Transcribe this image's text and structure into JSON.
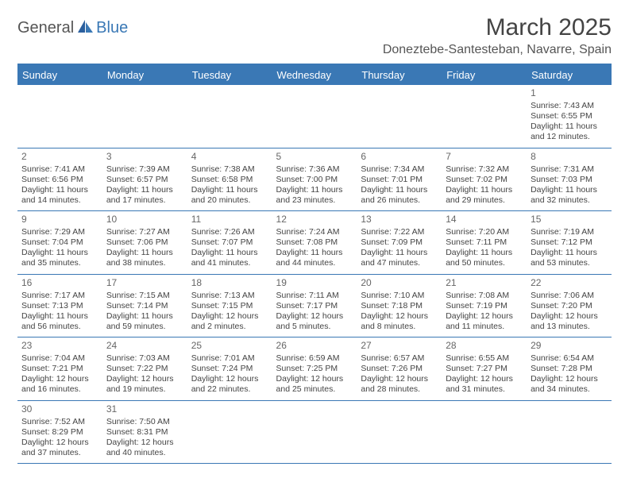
{
  "logo": {
    "part1": "General",
    "part2": "Blue"
  },
  "title": "March 2025",
  "location": "Doneztebe-Santesteban, Navarre, Spain",
  "colors": {
    "header_bg": "#3a78b5",
    "header_text": "#ffffff",
    "border": "#3a78b5",
    "text": "#444444",
    "daynum": "#666666"
  },
  "fonts": {
    "title_size": 30,
    "location_size": 16,
    "header_size": 13,
    "cell_size": 10.5,
    "daynum_size": 12
  },
  "weekdays": [
    "Sunday",
    "Monday",
    "Tuesday",
    "Wednesday",
    "Thursday",
    "Friday",
    "Saturday"
  ],
  "weeks": [
    [
      null,
      null,
      null,
      null,
      null,
      null,
      {
        "n": "1",
        "sr": "Sunrise: 7:43 AM",
        "ss": "Sunset: 6:55 PM",
        "dl1": "Daylight: 11 hours",
        "dl2": "and 12 minutes."
      }
    ],
    [
      {
        "n": "2",
        "sr": "Sunrise: 7:41 AM",
        "ss": "Sunset: 6:56 PM",
        "dl1": "Daylight: 11 hours",
        "dl2": "and 14 minutes."
      },
      {
        "n": "3",
        "sr": "Sunrise: 7:39 AM",
        "ss": "Sunset: 6:57 PM",
        "dl1": "Daylight: 11 hours",
        "dl2": "and 17 minutes."
      },
      {
        "n": "4",
        "sr": "Sunrise: 7:38 AM",
        "ss": "Sunset: 6:58 PM",
        "dl1": "Daylight: 11 hours",
        "dl2": "and 20 minutes."
      },
      {
        "n": "5",
        "sr": "Sunrise: 7:36 AM",
        "ss": "Sunset: 7:00 PM",
        "dl1": "Daylight: 11 hours",
        "dl2": "and 23 minutes."
      },
      {
        "n": "6",
        "sr": "Sunrise: 7:34 AM",
        "ss": "Sunset: 7:01 PM",
        "dl1": "Daylight: 11 hours",
        "dl2": "and 26 minutes."
      },
      {
        "n": "7",
        "sr": "Sunrise: 7:32 AM",
        "ss": "Sunset: 7:02 PM",
        "dl1": "Daylight: 11 hours",
        "dl2": "and 29 minutes."
      },
      {
        "n": "8",
        "sr": "Sunrise: 7:31 AM",
        "ss": "Sunset: 7:03 PM",
        "dl1": "Daylight: 11 hours",
        "dl2": "and 32 minutes."
      }
    ],
    [
      {
        "n": "9",
        "sr": "Sunrise: 7:29 AM",
        "ss": "Sunset: 7:04 PM",
        "dl1": "Daylight: 11 hours",
        "dl2": "and 35 minutes."
      },
      {
        "n": "10",
        "sr": "Sunrise: 7:27 AM",
        "ss": "Sunset: 7:06 PM",
        "dl1": "Daylight: 11 hours",
        "dl2": "and 38 minutes."
      },
      {
        "n": "11",
        "sr": "Sunrise: 7:26 AM",
        "ss": "Sunset: 7:07 PM",
        "dl1": "Daylight: 11 hours",
        "dl2": "and 41 minutes."
      },
      {
        "n": "12",
        "sr": "Sunrise: 7:24 AM",
        "ss": "Sunset: 7:08 PM",
        "dl1": "Daylight: 11 hours",
        "dl2": "and 44 minutes."
      },
      {
        "n": "13",
        "sr": "Sunrise: 7:22 AM",
        "ss": "Sunset: 7:09 PM",
        "dl1": "Daylight: 11 hours",
        "dl2": "and 47 minutes."
      },
      {
        "n": "14",
        "sr": "Sunrise: 7:20 AM",
        "ss": "Sunset: 7:11 PM",
        "dl1": "Daylight: 11 hours",
        "dl2": "and 50 minutes."
      },
      {
        "n": "15",
        "sr": "Sunrise: 7:19 AM",
        "ss": "Sunset: 7:12 PM",
        "dl1": "Daylight: 11 hours",
        "dl2": "and 53 minutes."
      }
    ],
    [
      {
        "n": "16",
        "sr": "Sunrise: 7:17 AM",
        "ss": "Sunset: 7:13 PM",
        "dl1": "Daylight: 11 hours",
        "dl2": "and 56 minutes."
      },
      {
        "n": "17",
        "sr": "Sunrise: 7:15 AM",
        "ss": "Sunset: 7:14 PM",
        "dl1": "Daylight: 11 hours",
        "dl2": "and 59 minutes."
      },
      {
        "n": "18",
        "sr": "Sunrise: 7:13 AM",
        "ss": "Sunset: 7:15 PM",
        "dl1": "Daylight: 12 hours",
        "dl2": "and 2 minutes."
      },
      {
        "n": "19",
        "sr": "Sunrise: 7:11 AM",
        "ss": "Sunset: 7:17 PM",
        "dl1": "Daylight: 12 hours",
        "dl2": "and 5 minutes."
      },
      {
        "n": "20",
        "sr": "Sunrise: 7:10 AM",
        "ss": "Sunset: 7:18 PM",
        "dl1": "Daylight: 12 hours",
        "dl2": "and 8 minutes."
      },
      {
        "n": "21",
        "sr": "Sunrise: 7:08 AM",
        "ss": "Sunset: 7:19 PM",
        "dl1": "Daylight: 12 hours",
        "dl2": "and 11 minutes."
      },
      {
        "n": "22",
        "sr": "Sunrise: 7:06 AM",
        "ss": "Sunset: 7:20 PM",
        "dl1": "Daylight: 12 hours",
        "dl2": "and 13 minutes."
      }
    ],
    [
      {
        "n": "23",
        "sr": "Sunrise: 7:04 AM",
        "ss": "Sunset: 7:21 PM",
        "dl1": "Daylight: 12 hours",
        "dl2": "and 16 minutes."
      },
      {
        "n": "24",
        "sr": "Sunrise: 7:03 AM",
        "ss": "Sunset: 7:22 PM",
        "dl1": "Daylight: 12 hours",
        "dl2": "and 19 minutes."
      },
      {
        "n": "25",
        "sr": "Sunrise: 7:01 AM",
        "ss": "Sunset: 7:24 PM",
        "dl1": "Daylight: 12 hours",
        "dl2": "and 22 minutes."
      },
      {
        "n": "26",
        "sr": "Sunrise: 6:59 AM",
        "ss": "Sunset: 7:25 PM",
        "dl1": "Daylight: 12 hours",
        "dl2": "and 25 minutes."
      },
      {
        "n": "27",
        "sr": "Sunrise: 6:57 AM",
        "ss": "Sunset: 7:26 PM",
        "dl1": "Daylight: 12 hours",
        "dl2": "and 28 minutes."
      },
      {
        "n": "28",
        "sr": "Sunrise: 6:55 AM",
        "ss": "Sunset: 7:27 PM",
        "dl1": "Daylight: 12 hours",
        "dl2": "and 31 minutes."
      },
      {
        "n": "29",
        "sr": "Sunrise: 6:54 AM",
        "ss": "Sunset: 7:28 PM",
        "dl1": "Daylight: 12 hours",
        "dl2": "and 34 minutes."
      }
    ],
    [
      {
        "n": "30",
        "sr": "Sunrise: 7:52 AM",
        "ss": "Sunset: 8:29 PM",
        "dl1": "Daylight: 12 hours",
        "dl2": "and 37 minutes."
      },
      {
        "n": "31",
        "sr": "Sunrise: 7:50 AM",
        "ss": "Sunset: 8:31 PM",
        "dl1": "Daylight: 12 hours",
        "dl2": "and 40 minutes."
      },
      null,
      null,
      null,
      null,
      null
    ]
  ]
}
